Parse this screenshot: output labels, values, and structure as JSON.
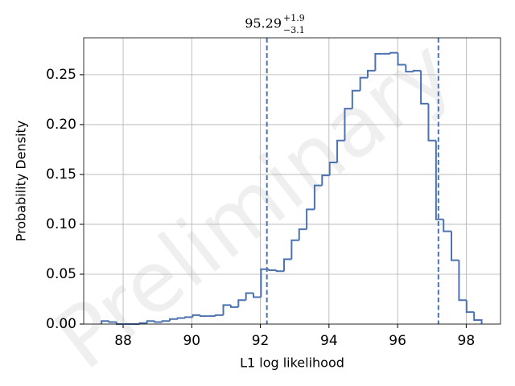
{
  "chart_data": {
    "type": "histogram",
    "watermark": "Preliminary",
    "title": {
      "value": "95.29",
      "upper": "+1.9",
      "lower": "−3.1"
    },
    "xlabel": "L1 log likelihood",
    "ylabel": "Probability Density",
    "bins": [
      87.37,
      87.59,
      87.81,
      88.03,
      88.26,
      88.48,
      88.7,
      88.92,
      89.14,
      89.36,
      89.59,
      89.81,
      90.03,
      90.25,
      90.47,
      90.69,
      90.92,
      91.14,
      91.36,
      91.58,
      91.8,
      92.02,
      92.25,
      92.47,
      92.69,
      92.91,
      93.13,
      93.35,
      93.58,
      93.8,
      94.02,
      94.24,
      94.46,
      94.68,
      94.91,
      95.13,
      95.35,
      95.57,
      95.79,
      96.01,
      96.24,
      96.46,
      96.68,
      96.9,
      97.12,
      97.34,
      97.57,
      97.79,
      98.01,
      98.23,
      98.45
    ],
    "values": [
      0.003,
      0.002,
      0.0,
      0.0,
      0.0,
      0.001,
      0.003,
      0.002,
      0.003,
      0.005,
      0.006,
      0.007,
      0.009,
      0.008,
      0.008,
      0.009,
      0.019,
      0.017,
      0.024,
      0.031,
      0.027,
      0.055,
      0.054,
      0.053,
      0.065,
      0.084,
      0.095,
      0.115,
      0.139,
      0.149,
      0.162,
      0.184,
      0.216,
      0.234,
      0.247,
      0.254,
      0.271,
      0.271,
      0.272,
      0.26,
      0.253,
      0.254,
      0.221,
      0.184,
      0.105,
      0.093,
      0.064,
      0.024,
      0.012,
      0.004
    ],
    "color": "#4c72b0",
    "vlines": [
      92.19,
      97.19
    ],
    "xlim": [
      86.85,
      99.0
    ],
    "ylim": [
      0,
      0.287
    ],
    "xticks": [
      88,
      90,
      92,
      94,
      96,
      98
    ],
    "yticks": [
      {
        "value": 0,
        "label": "0.00"
      },
      0.05,
      {
        "value": 0.1,
        "label": "0.10"
      },
      0.15,
      {
        "value": 0.2,
        "label": "0.20"
      },
      0.25
    ],
    "grid": true
  }
}
